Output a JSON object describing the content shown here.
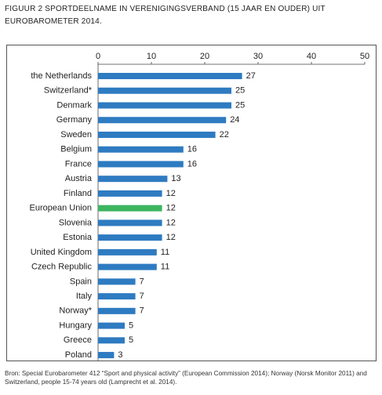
{
  "chart_data": {
    "type": "bar",
    "orientation": "horizontal",
    "title": "FIGUUR 2  SPORTDEELNAME IN VERENIGINGSVERBAND (15 JAAR EN OUDER) UIT EUROBAROMETER 2014.",
    "source": "Bron: Special Eurobarometer 412 “Sport and physical activity” (European Commission 2014); Norway (Norsk Monitor 2011) and Switzerland, people 15-74 years old (Lamprecht et al. 2014).",
    "categories": [
      "the Netherlands",
      "Switzerland*",
      "Denmark",
      "Germany",
      "Sweden",
      "Belgium",
      "France",
      "Austria",
      "Finland",
      "European Union",
      "Slovenia",
      "Estonia",
      "United Kingdom",
      "Czech Republic",
      "Spain",
      "Italy",
      "Norway*",
      "Hungary",
      "Greece",
      "Poland"
    ],
    "values": [
      27,
      25,
      25,
      24,
      22,
      16,
      16,
      13,
      12,
      12,
      12,
      12,
      11,
      11,
      7,
      7,
      7,
      5,
      5,
      3
    ],
    "colors": [
      "#2e7bc1",
      "#2e7bc1",
      "#2e7bc1",
      "#2e7bc1",
      "#2e7bc1",
      "#2e7bc1",
      "#2e7bc1",
      "#2e7bc1",
      "#2e7bc1",
      "#3db560",
      "#2e7bc1",
      "#2e7bc1",
      "#2e7bc1",
      "#2e7bc1",
      "#2e7bc1",
      "#2e7bc1",
      "#2e7bc1",
      "#2e7bc1",
      "#2e7bc1",
      "#2e7bc1"
    ],
    "xlim": [
      0,
      50
    ],
    "xticks": [
      0,
      10,
      20,
      30,
      40,
      50
    ],
    "grid": false
  }
}
